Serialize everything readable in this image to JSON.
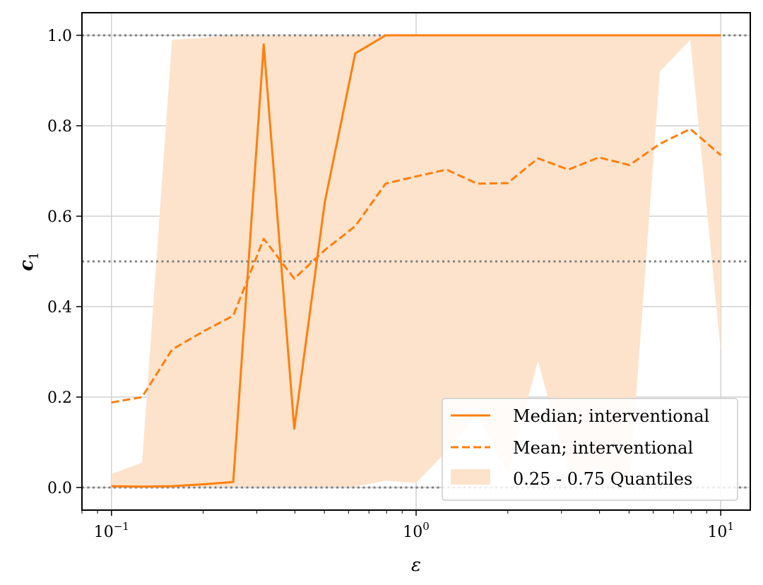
{
  "chart_data": {
    "type": "line",
    "xlabel": "ε",
    "ylabel": "c",
    "ylabel_subscript": "1",
    "xscale": "log",
    "xlim": [
      0.08,
      12.5
    ],
    "ylim": [
      -0.05,
      1.05
    ],
    "x_ticks": [
      {
        "value": 0.1,
        "base": "10",
        "exp": "−1"
      },
      {
        "value": 1,
        "base": "10",
        "exp": "0"
      },
      {
        "value": 10,
        "base": "10",
        "exp": "1"
      }
    ],
    "y_ticks": [
      {
        "value": 0.0,
        "label": "0.0"
      },
      {
        "value": 0.2,
        "label": "0.2"
      },
      {
        "value": 0.4,
        "label": "0.4"
      },
      {
        "value": 0.6,
        "label": "0.6"
      },
      {
        "value": 0.8,
        "label": "0.8"
      },
      {
        "value": 1.0,
        "label": "1.0"
      }
    ],
    "grid": true,
    "reference_lines": [
      0.0,
      0.5,
      1.0
    ],
    "legend_position": "lower-right",
    "color": "#ff7f0e",
    "band_color": "#fde3cc",
    "x": [
      0.1,
      0.126,
      0.158,
      0.2,
      0.251,
      0.316,
      0.398,
      0.501,
      0.631,
      0.794,
      1.0,
      1.259,
      1.585,
      1.995,
      2.512,
      3.162,
      3.981,
      5.012,
      6.31,
      7.943,
      10.0
    ],
    "series": [
      {
        "name": "Median; interventional",
        "style": "solid",
        "values": [
          0.003,
          0.002,
          0.003,
          0.007,
          0.012,
          0.98,
          0.13,
          0.63,
          0.96,
          1.0,
          1.0,
          1.0,
          1.0,
          1.0,
          1.0,
          1.0,
          1.0,
          1.0,
          1.0,
          1.0,
          1.0
        ]
      },
      {
        "name": "Mean; interventional",
        "style": "dashed",
        "values": [
          0.188,
          0.2,
          0.305,
          0.345,
          0.38,
          0.55,
          0.462,
          0.525,
          0.578,
          0.672,
          0.688,
          0.703,
          0.672,
          0.673,
          0.728,
          0.703,
          0.73,
          0.713,
          0.76,
          0.793,
          0.735
        ]
      }
    ],
    "band": {
      "name": "0.25 - 0.75 Quantiles",
      "lower": [
        0.003,
        0.002,
        0.002,
        0.002,
        0.002,
        0.002,
        0.002,
        0.002,
        0.002,
        0.015,
        0.01,
        0.08,
        0.16,
        0.03,
        0.28,
        0.03,
        0.04,
        0.0,
        0.92,
        0.99,
        0.3
      ],
      "upper": [
        0.03,
        0.055,
        0.99,
        0.995,
        1.0,
        1.0,
        1.0,
        1.0,
        1.0,
        1.0,
        1.0,
        1.0,
        1.0,
        1.0,
        1.0,
        1.0,
        1.0,
        1.0,
        1.0,
        1.0,
        1.0
      ]
    }
  }
}
